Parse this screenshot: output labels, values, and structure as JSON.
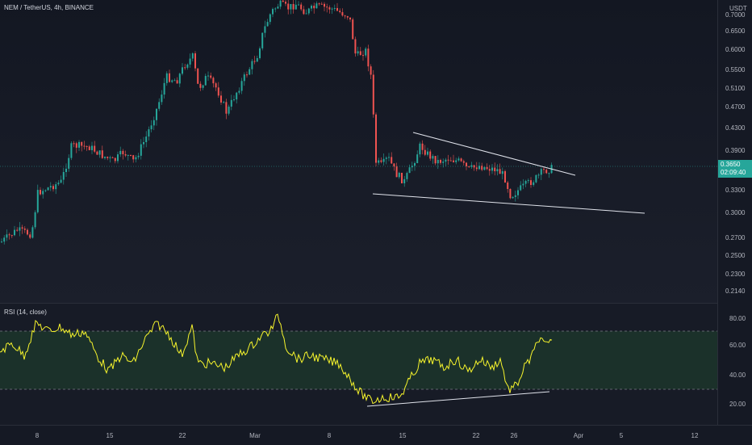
{
  "symbol": {
    "legend": "NEM / TetherUS, 4h, BINANCE"
  },
  "indicator": {
    "legend": "RSI (14, close)"
  },
  "price_axis": {
    "currency": "USDT",
    "ticks": [
      "0.7000",
      "0.6500",
      "0.6000",
      "0.5500",
      "0.5100",
      "0.4700",
      "0.4300",
      "0.3900",
      "0.3650",
      "0.3300",
      "0.3000",
      "0.2700",
      "0.2500",
      "0.2300",
      "0.2140"
    ]
  },
  "current_price": {
    "value": "0.3650",
    "countdown": "02:09:40"
  },
  "rsi_axis": {
    "ticks": [
      "80.00",
      "60.00",
      "40.00",
      "20.00"
    ]
  },
  "time_axis": {
    "ticks": [
      "8",
      "15",
      "22",
      "Mar",
      "8",
      "15",
      "22",
      "26",
      "Apr",
      "5",
      "12"
    ]
  },
  "colors": {
    "up": "#26a69a",
    "down": "#ef5350",
    "rsi": "#f7f52c",
    "band_fill": "#1e3a2c",
    "trendline": "#e0e3eb"
  }
}
